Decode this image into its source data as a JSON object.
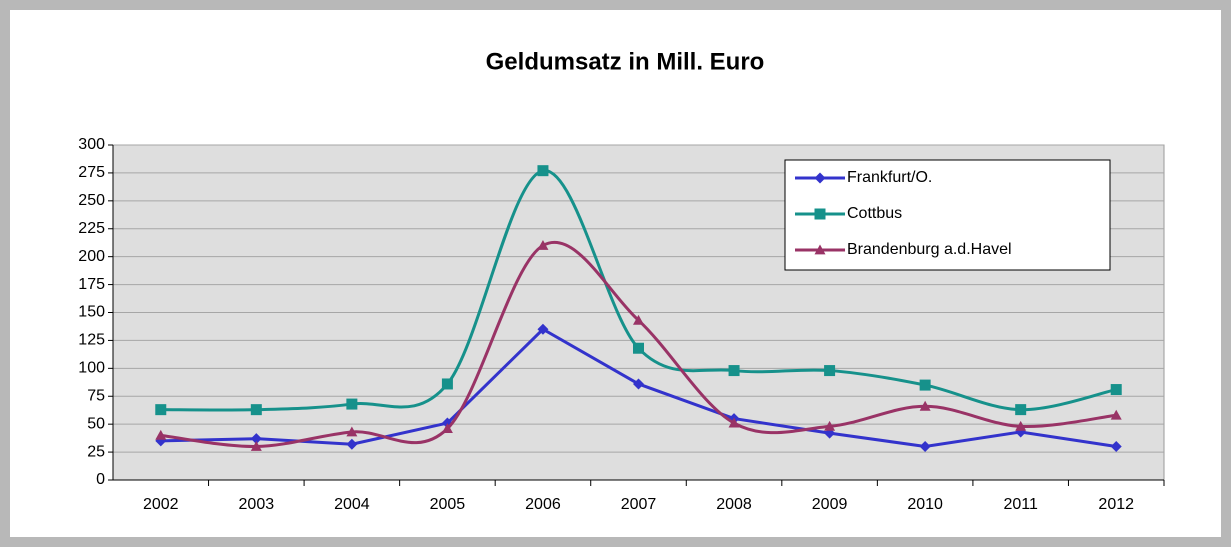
{
  "chart_data": {
    "type": "line",
    "title": "Geldumsatz in Mill. Euro",
    "categories": [
      "2002",
      "2003",
      "2004",
      "2005",
      "2006",
      "2007",
      "2008",
      "2009",
      "2010",
      "2011",
      "2012"
    ],
    "series": [
      {
        "name": "Frankfurt/O.",
        "color": "#3333cc",
        "marker": "diamond",
        "smooth": false,
        "values": [
          35,
          37,
          32,
          51,
          135,
          86,
          55,
          42,
          30,
          43,
          30
        ]
      },
      {
        "name": "Cottbus",
        "color": "#16918b",
        "marker": "square",
        "smooth": true,
        "values": [
          63,
          63,
          68,
          86,
          277,
          118,
          98,
          98,
          85,
          63,
          81
        ]
      },
      {
        "name": "Brandenburg a.d.Havel",
        "color": "#993366",
        "marker": "triangle",
        "smooth": true,
        "values": [
          40,
          30,
          43,
          46,
          210,
          143,
          51,
          48,
          66,
          48,
          58
        ]
      }
    ],
    "ylim": [
      0,
      300
    ],
    "yticks": [
      0,
      25,
      50,
      75,
      100,
      125,
      150,
      175,
      200,
      225,
      250,
      275,
      300
    ],
    "grid": true,
    "legend": "top-right"
  }
}
